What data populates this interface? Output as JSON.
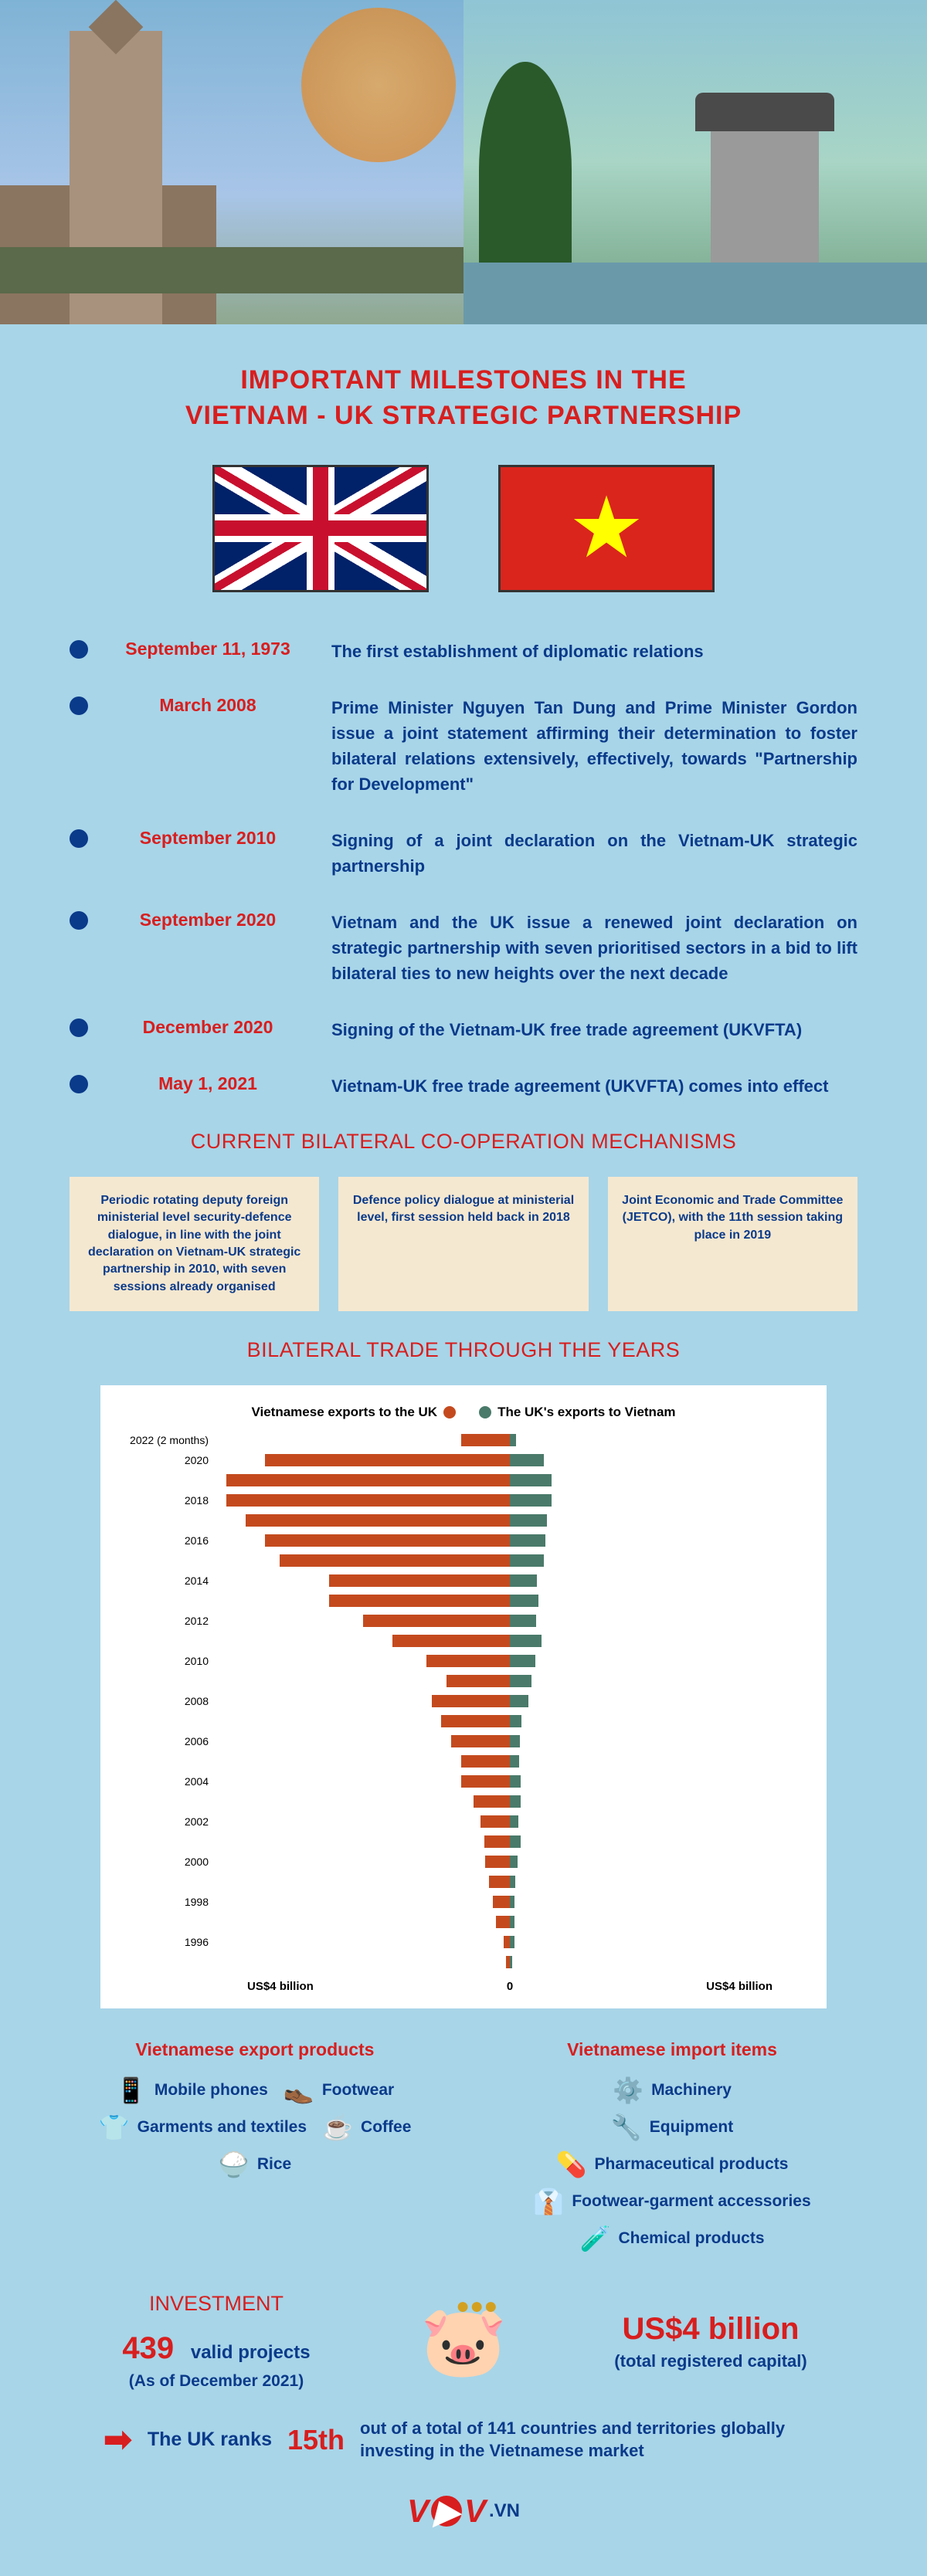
{
  "colors": {
    "bg": "#a8d5e8",
    "red": "#d81e1e",
    "blue": "#0a3a8a",
    "bar_export": "#c44a1e",
    "bar_import": "#4a7a6a",
    "mech_bg": "#f5e8d0"
  },
  "title_line1": "IMPORTANT MILESTONES IN THE",
  "title_line2": "VIETNAM - UK STRATEGIC PARTNERSHIP",
  "timeline": [
    {
      "date": "September 11, 1973",
      "desc": "The first establishment of diplomatic relations"
    },
    {
      "date": "March 2008",
      "desc": "Prime Minister Nguyen Tan Dung and Prime Minister Gordon issue a joint statement affirming their determination to foster bilateral relations extensively, effectively, towards \"Partnership for Development\""
    },
    {
      "date": "September 2010",
      "desc": "Signing of a joint declaration on the Vietnam-UK strategic partnership"
    },
    {
      "date": "September 2020",
      "desc": "Vietnam and the UK issue a renewed joint declaration on strategic partnership with seven prioritised sectors in a bid to lift bilateral ties to new heights over the next decade"
    },
    {
      "date": "December 2020",
      "desc": "Signing of the Vietnam-UK free trade agreement (UKVFTA)"
    },
    {
      "date": "May 1, 2021",
      "desc": "Vietnam-UK free trade agreement (UKVFTA) comes into effect"
    }
  ],
  "mechanisms_title": "CURRENT BILATERAL CO-OPERATION MECHANISMS",
  "mechanisms": [
    "Periodic rotating deputy foreign ministerial level security-defence dialogue, in line with the joint declaration on Vietnam-UK strategic partnership in 2010, with seven sessions already organised",
    "Defence policy dialogue at ministerial level, first session held back in 2018",
    "Joint Economic and Trade Committee (JETCO), with the 11th session taking place in 2019"
  ],
  "trade_title": "BILATERAL TRADE THROUGH THE YEARS",
  "chart": {
    "type": "diverging-bar",
    "legend_left": "Vietnamese exports to the UK",
    "legend_right": "The UK's exports to Vietnam",
    "x_label_left": "US$4 billion",
    "x_label_center": "0",
    "x_label_right": "US$4 billion",
    "max_value": 6.0,
    "rows": [
      {
        "label": "2022 (2 months)",
        "export": 1.0,
        "import": 0.12
      },
      {
        "label": "2020",
        "export": 5.0,
        "import": 0.7
      },
      {
        "label": "",
        "export": 5.8,
        "import": 0.85
      },
      {
        "label": "2018",
        "export": 5.8,
        "import": 0.85
      },
      {
        "label": "",
        "export": 5.4,
        "import": 0.75
      },
      {
        "label": "2016",
        "export": 5.0,
        "import": 0.73
      },
      {
        "label": "",
        "export": 4.7,
        "import": 0.7
      },
      {
        "label": "2014",
        "export": 3.7,
        "import": 0.55
      },
      {
        "label": "",
        "export": 3.7,
        "import": 0.58
      },
      {
        "label": "2012",
        "export": 3.0,
        "import": 0.54
      },
      {
        "label": "",
        "export": 2.4,
        "import": 0.65
      },
      {
        "label": "2010",
        "export": 1.7,
        "import": 0.52
      },
      {
        "label": "",
        "export": 1.3,
        "import": 0.44
      },
      {
        "label": "2008",
        "export": 1.6,
        "import": 0.38
      },
      {
        "label": "",
        "export": 1.4,
        "import": 0.24
      },
      {
        "label": "2006",
        "export": 1.2,
        "import": 0.2
      },
      {
        "label": "",
        "export": 1.0,
        "import": 0.19
      },
      {
        "label": "2004",
        "export": 1.0,
        "import": 0.23
      },
      {
        "label": "",
        "export": 0.75,
        "import": 0.22
      },
      {
        "label": "2002",
        "export": 0.6,
        "import": 0.17
      },
      {
        "label": "",
        "export": 0.52,
        "import": 0.23
      },
      {
        "label": "2000",
        "export": 0.5,
        "import": 0.15
      },
      {
        "label": "",
        "export": 0.43,
        "import": 0.11
      },
      {
        "label": "1998",
        "export": 0.35,
        "import": 0.1
      },
      {
        "label": "",
        "export": 0.28,
        "import": 0.1
      },
      {
        "label": "1996",
        "export": 0.13,
        "import": 0.1
      },
      {
        "label": "",
        "export": 0.08,
        "import": 0.05
      }
    ]
  },
  "exports_title": "Vietnamese export products",
  "exports": [
    {
      "icon": "📱",
      "label": "Mobile phones"
    },
    {
      "icon": "👞",
      "label": "Footwear"
    },
    {
      "icon": "👕",
      "label": "Garments and textiles"
    },
    {
      "icon": "☕",
      "label": "Coffee"
    },
    {
      "icon": "🍚",
      "label": "Rice"
    }
  ],
  "imports_title": "Vietnamese import items",
  "imports": [
    {
      "icon": "⚙️",
      "label": "Machinery"
    },
    {
      "icon": "🔧",
      "label": "Equipment"
    },
    {
      "icon": "💊",
      "label": "Pharmaceutical products"
    },
    {
      "icon": "👔",
      "label": "Footwear-garment accessories"
    },
    {
      "icon": "🧪",
      "label": "Chemical products"
    }
  ],
  "investment": {
    "title": "INVESTMENT",
    "projects_num": "439",
    "projects_label": "valid projects",
    "asof": "(As of December 2021)",
    "amount": "US$4 billion",
    "amount_sub": "(total registered capital)"
  },
  "rank": {
    "prefix": "The UK ranks",
    "num": "15th",
    "suffix": "out of a total of 141 countries and territories globally investing in the Vietnamese market"
  },
  "logo": {
    "v": "V",
    "v2": "V",
    "vn": ".VN"
  }
}
